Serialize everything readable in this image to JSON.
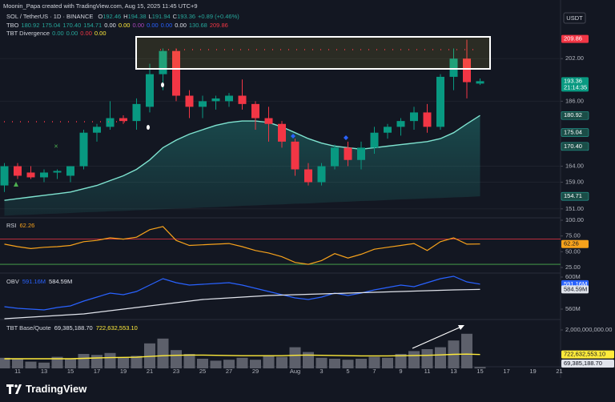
{
  "header": {
    "credit": "Moonin_Papa created with TradingView.com, Aug 15, 2025 11:45 UTC+9",
    "symbol": "SOL / TetherUS · 1D · BINANCE",
    "ohlc": [
      "O",
      "192.46",
      "H",
      "194.38",
      "L",
      "191.94",
      "C",
      "193.36"
    ],
    "change": "+0.89 (+0.46%)",
    "tbo": {
      "name": "TBO",
      "values": [
        "180.92",
        "175.04",
        "170.40",
        "154.71",
        "0.00",
        "0.00",
        "0.00",
        "0.00",
        "0.00",
        "0.00",
        "130.68",
        "209.86"
      ],
      "colors": [
        "#26a69a",
        "#26a69a",
        "#26a69a",
        "#26a69a",
        "#e0e3eb",
        "#ffeb3b",
        "#ab47bc",
        "#2962ff",
        "#2962ff",
        "#e0e3eb",
        "#26a69a",
        "#f23645"
      ]
    },
    "tbt": {
      "name": "TBT Divergence",
      "values": [
        "0.00",
        "0.00",
        "0.00",
        "0.00"
      ],
      "colors": [
        "#26a69a",
        "#26a69a",
        "#f23645",
        "#ffeb3b"
      ]
    },
    "currency": "USDT"
  },
  "footer": {
    "brand": "TradingView"
  },
  "chart_data": [
    {
      "type": "candlestick",
      "log": true,
      "grid": true,
      "categories": [
        null,
        "11",
        null,
        "13",
        null,
        "15",
        null,
        "17",
        null,
        "19",
        null,
        "21",
        null,
        "23",
        null,
        "25",
        null,
        "27",
        null,
        "29",
        null,
        null,
        "Aug",
        null,
        "3",
        null,
        "5",
        null,
        "7",
        null,
        "9",
        null,
        "11",
        null,
        "13",
        null,
        "15",
        null,
        "17",
        null,
        "19",
        null,
        "21"
      ],
      "open": [
        158,
        164,
        162,
        160.5,
        162,
        161,
        164,
        175,
        177,
        180,
        179,
        184,
        196,
        205,
        188,
        184,
        186,
        186,
        188,
        185,
        180,
        178,
        172,
        163,
        159,
        164,
        170,
        166,
        170,
        175,
        177,
        179,
        182,
        177,
        195,
        202,
        192.46,
        null,
        null,
        null,
        null,
        null,
        null
      ],
      "high": [
        165,
        165,
        164,
        163,
        163,
        164,
        176,
        178,
        186,
        181,
        187,
        200,
        206,
        206,
        190,
        188,
        188,
        189,
        194,
        186,
        184,
        179,
        173,
        165,
        165,
        171,
        172,
        172,
        177,
        178,
        180,
        184,
        185,
        196,
        206,
        209.5,
        194.38,
        null,
        null,
        null,
        null,
        null,
        null
      ],
      "low": [
        156,
        160,
        160,
        159,
        160,
        159,
        163,
        172,
        176,
        178,
        176,
        182,
        190,
        186,
        180,
        180,
        183,
        184,
        183,
        176,
        172,
        170,
        161,
        158,
        158,
        163,
        164,
        163,
        168,
        173,
        174,
        176,
        175,
        176,
        190,
        187,
        191.94,
        null,
        null,
        null,
        null,
        null,
        null
      ],
      "close": [
        164,
        161,
        160.5,
        162,
        162.5,
        164,
        175,
        177,
        180,
        179,
        185,
        196,
        205,
        188,
        184,
        186,
        187,
        188,
        185,
        180,
        178,
        172,
        163,
        159,
        164,
        170,
        166,
        170,
        175,
        177,
        179,
        182,
        177,
        195,
        202,
        193,
        193.36,
        null,
        null,
        null,
        null,
        null,
        null
      ],
      "up_color": "#089981",
      "down_color": "#f23645",
      "ma": [
        153.5,
        154,
        154.5,
        155,
        155.5,
        156,
        157,
        158,
        159.5,
        161,
        163,
        166,
        170,
        172.5,
        174.5,
        176,
        177.5,
        178.5,
        179,
        179,
        178.5,
        177,
        175,
        173,
        171.5,
        170.5,
        170,
        169.5,
        170,
        170.5,
        171,
        171.5,
        172,
        173,
        175,
        178,
        180.92,
        null,
        null,
        null,
        null,
        null,
        null
      ],
      "ma_color": "#7fe3d0",
      "band_low": [
        149,
        149.2,
        149.3,
        149.5,
        149.6,
        149.8,
        150,
        150.1,
        150.3,
        150.4,
        150.6,
        150.7,
        150.9,
        151.1,
        151.2,
        151.4,
        151.5,
        151.7,
        151.9,
        152,
        152.2,
        152.3,
        152.5,
        152.6,
        152.8,
        153,
        153.1,
        153.3,
        153.4,
        153.6,
        153.8,
        153.9,
        154.1,
        154.2,
        154.4,
        154.5,
        154.71,
        null,
        null,
        null,
        null,
        null,
        null
      ],
      "ylim": [
        148.4,
        222.8
      ],
      "yticks": [
        {
          "value": 202,
          "label": "202.00"
        },
        {
          "value": 186,
          "label": "186.00"
        },
        {
          "value": 164,
          "label": "164.00"
        },
        {
          "value": 159,
          "label": "159.00"
        },
        {
          "value": 151,
          "label": "151.00"
        }
      ],
      "tags": [
        {
          "value": 209.86,
          "label": "209.86",
          "color": "#f23645"
        },
        {
          "value": 193.36,
          "label": "193.36",
          "color": "#089981",
          "sub": "21:14:35"
        },
        {
          "value": 180.92,
          "label": "180.92",
          "color": "#1b4d47"
        },
        {
          "value": 175.04,
          "label": "175.04",
          "color": "#1b4d47"
        },
        {
          "value": 170.4,
          "label": "170.40",
          "color": "#1b4d47"
        },
        {
          "value": 154.71,
          "label": "154.71",
          "color": "#1b4d47"
        }
      ]
    },
    {
      "type": "line",
      "title": "RSI",
      "color": "#f7a21b",
      "values": [
        62,
        58,
        55,
        57,
        58,
        60,
        66,
        68,
        72,
        70,
        73,
        85,
        90,
        68,
        60,
        61,
        62,
        63,
        58,
        52,
        48,
        42,
        33,
        30,
        36,
        47,
        40,
        46,
        54,
        57,
        60,
        63,
        52,
        66,
        72,
        62,
        62.26,
        null,
        null,
        null,
        null,
        null,
        null
      ],
      "ylim": [
        17.4,
        103.8
      ],
      "yticks": [
        {
          "value": 100,
          "label": "100.00"
        },
        {
          "value": 75,
          "label": "75.00"
        },
        {
          "value": 50,
          "label": "50.00"
        },
        {
          "value": 25,
          "label": "25.00"
        }
      ],
      "levels": [
        {
          "value": 70,
          "color": "#f23645"
        },
        {
          "value": 30,
          "color": "#4caf50"
        }
      ],
      "tags": [
        {
          "value": 62.26,
          "label": "62.26",
          "color": "#f7a21b"
        }
      ]
    },
    {
      "type": "line",
      "title": "OBV",
      "series": [
        {
          "color": "#2962ff",
          "values": [
            563000000,
            561000000,
            560000000,
            559000000,
            562000000,
            564000000,
            570000000,
            575000000,
            580000000,
            578000000,
            582000000,
            590000000,
            598000000,
            593000000,
            590000000,
            591000000,
            592000000,
            593000000,
            590000000,
            586000000,
            582000000,
            578000000,
            574000000,
            572000000,
            575000000,
            580000000,
            577000000,
            580000000,
            584000000,
            587000000,
            590000000,
            588000000,
            593000000,
            598000000,
            601000000,
            594000000,
            591160000,
            null,
            null,
            null,
            null,
            null,
            null
          ]
        },
        {
          "color": "#e0e3eb",
          "values": [
            548000000,
            549000000,
            550000000,
            551000000,
            552000000,
            553000000,
            554000000,
            556000000,
            558000000,
            560000000,
            562000000,
            564000000,
            566000000,
            568000000,
            570000000,
            572000000,
            573000000,
            574000000,
            575000000,
            576000000,
            577000000,
            577500000,
            578000000,
            578500000,
            579000000,
            579500000,
            580000000,
            580500000,
            581000000,
            581500000,
            582000000,
            582500000,
            583000000,
            583500000,
            584000000,
            584300000,
            584590000,
            null,
            null,
            null,
            null,
            null,
            null
          ]
        }
      ],
      "ylim": [
        548000000,
        604000000
      ],
      "yticks": [
        {
          "value": 600000000,
          "label": "600M"
        },
        {
          "value": 560000000,
          "label": "560M"
        }
      ],
      "tags": [
        {
          "value": 591160000,
          "label": "591.16M",
          "color": "#2962ff"
        },
        {
          "value": 584590000,
          "label": "584.59M",
          "color": "#e0e3eb"
        }
      ]
    },
    {
      "type": "bar",
      "title": "TBT Base/Quote",
      "color": "#5d606b",
      "values": [
        550000000,
        500000000,
        350000000,
        300000000,
        600000000,
        500000000,
        750000000,
        700000000,
        800000000,
        550000000,
        650000000,
        1300000000,
        1550000000,
        950000000,
        750000000,
        500000000,
        400000000,
        450000000,
        550000000,
        450000000,
        650000000,
        600000000,
        1100000000,
        850000000,
        550000000,
        500000000,
        450000000,
        500000000,
        600000000,
        550000000,
        750000000,
        900000000,
        1000000000,
        1100000000,
        1450000000,
        1800000000,
        69385188.7,
        null,
        null,
        null,
        null,
        null,
        null
      ],
      "ma": [
        500000000,
        500000000,
        500000000,
        500000000,
        500000000,
        500000000,
        520000000,
        540000000,
        560000000,
        570000000,
        580000000,
        620000000,
        660000000,
        680000000,
        690000000,
        690000000,
        680000000,
        670000000,
        660000000,
        660000000,
        660000000,
        660000000,
        680000000,
        690000000,
        680000000,
        670000000,
        660000000,
        650000000,
        650000000,
        650000000,
        660000000,
        670000000,
        680000000,
        700000000,
        730000000,
        740000000,
        722632553.1,
        null,
        null,
        null,
        null,
        null,
        null
      ],
      "ma_color": "#ffeb3b",
      "ylim": [
        0,
        2500000000
      ],
      "yticks": [
        {
          "value": 2000000000,
          "label": "2,000,000,000.00"
        }
      ],
      "tags": [
        {
          "value": 69385188.7,
          "label": "69,385,188.70",
          "color": "#e0e3eb"
        },
        {
          "value": 722632553.1,
          "label": "722,632,553.10",
          "color": "#ffeb3b"
        }
      ]
    }
  ]
}
